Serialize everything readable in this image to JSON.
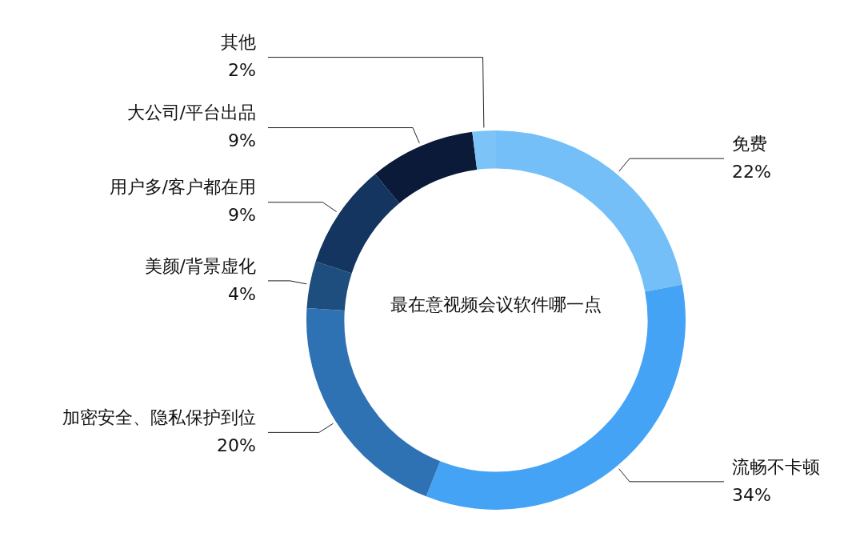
{
  "chart_data": {
    "type": "donut",
    "title": "最在意视频会议软件哪一点",
    "categories": [
      "免费",
      "流畅不卡顿",
      "加密安全、隐私保护到位",
      "美颜/背景虚化",
      "用户多/客户都在用",
      "大公司/平台出品",
      "其他"
    ],
    "values": [
      22,
      34,
      20,
      4,
      9,
      9,
      2
    ],
    "colors": [
      "#74bff8",
      "#45a3f5",
      "#2f72b4",
      "#1e4e7e",
      "#143560",
      "#0a1a38",
      "#7cc3f7"
    ],
    "value_labels": [
      "22%",
      "34%",
      "20%",
      "4%",
      "9%",
      "9%",
      "2%"
    ]
  }
}
